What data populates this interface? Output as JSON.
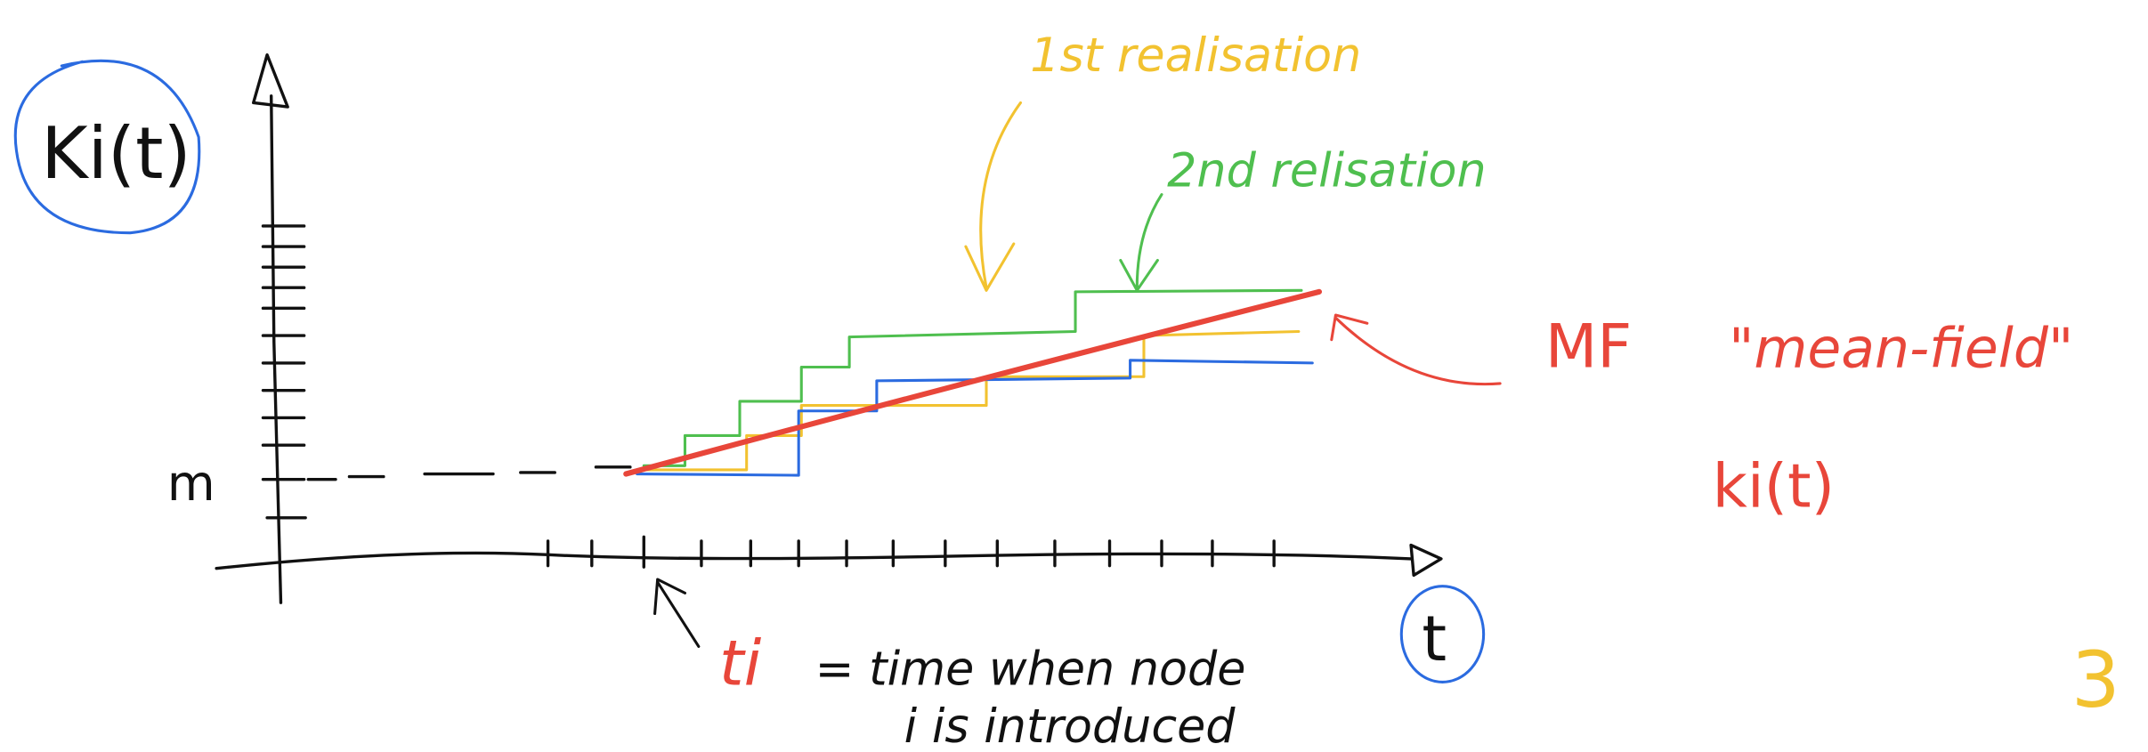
{
  "axis_label_y": "Ki(t)",
  "axis_label_x": "t",
  "level_label": "m",
  "first_realisation": "1st realisation",
  "second_realisation": "2nd relisation",
  "mean_field": {
    "abbr": "MF",
    "name": "\"mean-field\"",
    "symbol": "ki(t)"
  },
  "ti_note": {
    "symbol": "ti",
    "line1": "= time when node",
    "line2": "i is introduced"
  },
  "page_number": "3"
}
